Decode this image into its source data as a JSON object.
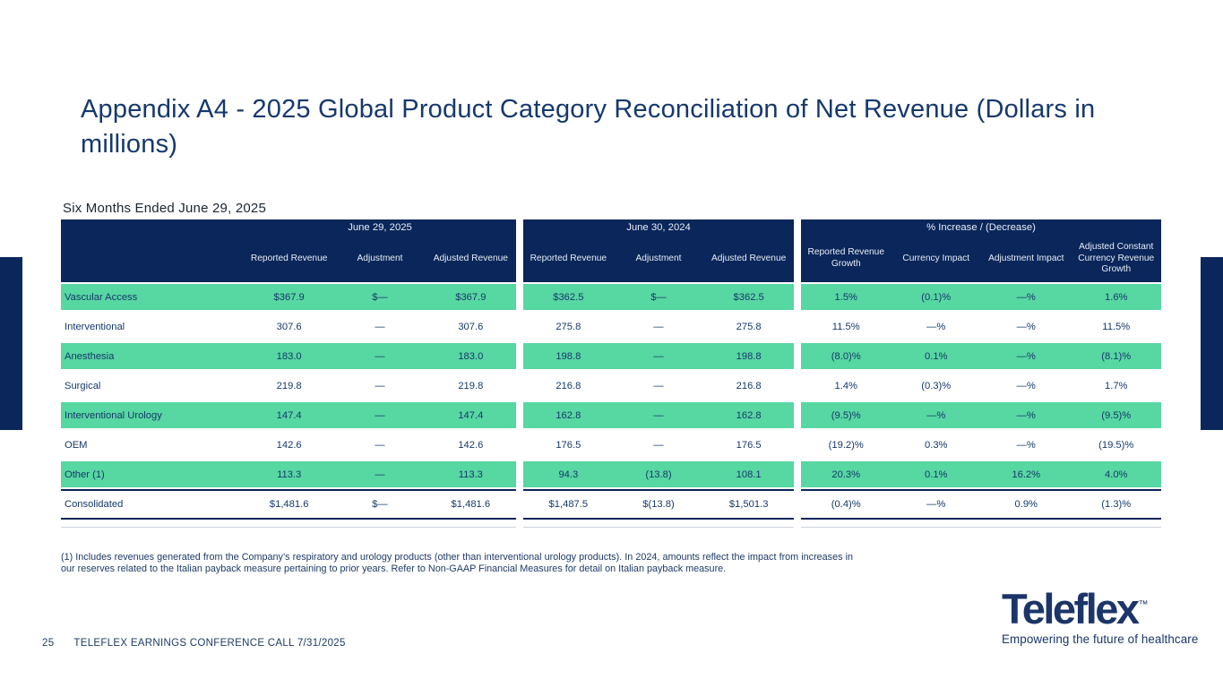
{
  "slide": {
    "title": "Appendix A4 - 2025 Global Product Category Reconciliation of Net Revenue (Dollars in millions)",
    "caption": "Six Months Ended June 29, 2025",
    "footnote": "(1) Includes revenues generated from the Company’s respiratory and urology products (other than interventional urology products). In 2024, amounts reflect the impact from increases in our reserves related to the Italian payback measure pertaining to prior years. Refer to Non-GAAP Financial Measures for detail on Italian payback measure.",
    "page_number": "25",
    "footer_text": "TELEFLEX EARNINGS CONFERENCE CALL 7/31/2025"
  },
  "logo": {
    "wordmark": "Teleflex",
    "trademark": "™",
    "tagline": "Empowering the future of healthcare"
  },
  "colors": {
    "header_navy": "#0a265a",
    "row_green": "#57d7a2",
    "table_text": "#16386b"
  },
  "table": {
    "groups": [
      {
        "title": "June 29, 2025",
        "label_column": true,
        "columns": [
          "Reported Revenue",
          "Adjustment",
          "Adjusted Revenue"
        ]
      },
      {
        "title": "June 30, 2024",
        "label_column": false,
        "columns": [
          "Reported Revenue",
          "Adjustment",
          "Adjusted Revenue"
        ]
      },
      {
        "title": "% Increase / (Decrease)",
        "label_column": false,
        "columns": [
          "Reported Revenue Growth",
          "Currency Impact",
          "Adjustment Impact",
          "Adjusted Constant Currency Revenue Growth"
        ]
      }
    ],
    "rows": [
      {
        "label": "Vascular Access",
        "highlight": true,
        "total": false,
        "values": [
          "$367.9",
          "$—",
          "$367.9",
          "$362.5",
          "$—",
          "$362.5",
          "1.5%",
          "(0.1)%",
          "—%",
          "1.6%"
        ]
      },
      {
        "label": "Interventional",
        "highlight": false,
        "total": false,
        "values": [
          "307.6",
          "—",
          "307.6",
          "275.8",
          "—",
          "275.8",
          "11.5%",
          "—%",
          "—%",
          "11.5%"
        ]
      },
      {
        "label": "Anesthesia",
        "highlight": true,
        "total": false,
        "values": [
          "183.0",
          "—",
          "183.0",
          "198.8",
          "—",
          "198.8",
          "(8.0)%",
          "0.1%",
          "—%",
          "(8.1)%"
        ]
      },
      {
        "label": "Surgical",
        "highlight": false,
        "total": false,
        "values": [
          "219.8",
          "—",
          "219.8",
          "216.8",
          "—",
          "216.8",
          "1.4%",
          "(0.3)%",
          "—%",
          "1.7%"
        ]
      },
      {
        "label": "Interventional Urology",
        "highlight": true,
        "total": false,
        "values": [
          "147.4",
          "—",
          "147.4",
          "162.8",
          "—",
          "162.8",
          "(9.5)%",
          "—%",
          "—%",
          "(9.5)%"
        ]
      },
      {
        "label": "OEM",
        "highlight": false,
        "total": false,
        "values": [
          "142.6",
          "—",
          "142.6",
          "176.5",
          "—",
          "176.5",
          "(19.2)%",
          "0.3%",
          "—%",
          "(19.5)%"
        ]
      },
      {
        "label": "Other (1)",
        "highlight": true,
        "total": false,
        "values": [
          "113.3",
          "—",
          "113.3",
          "94.3",
          "(13.8)",
          "108.1",
          "20.3%",
          "0.1%",
          "16.2%",
          "4.0%"
        ]
      },
      {
        "label": "Consolidated",
        "highlight": false,
        "total": true,
        "values": [
          "$1,481.6",
          "$—",
          "$1,481.6",
          "$1,487.5",
          "$(13.8)",
          "$1,501.3",
          "(0.4)%",
          "—%",
          "0.9%",
          "(1.3)%"
        ]
      }
    ]
  }
}
